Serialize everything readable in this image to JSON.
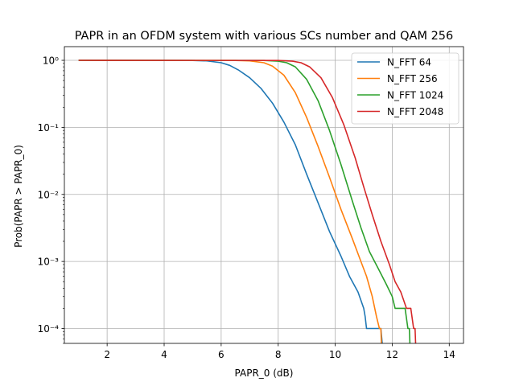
{
  "chart_data": {
    "type": "line",
    "title": "PAPR in an OFDM system with various SCs number and QAM 256",
    "xlabel": "PAPR_0 (dB)",
    "ylabel": "Prob(PAPR > PAPR_0)",
    "xlim": [
      0.5,
      14.5
    ],
    "ylim": [
      6e-05,
      1.6
    ],
    "yscale": "log",
    "xticks": [
      2,
      4,
      6,
      8,
      10,
      12,
      14
    ],
    "yticks": [
      {
        "value": 0.0001,
        "label": "10⁻⁴"
      },
      {
        "value": 0.001,
        "label": "10⁻³"
      },
      {
        "value": 0.01,
        "label": "10⁻²"
      },
      {
        "value": 0.1,
        "label": "10⁻¹"
      },
      {
        "value": 1,
        "label": "10⁰"
      }
    ],
    "grid": true,
    "legend_position": "top-right",
    "series": [
      {
        "name": "N_FFT 64",
        "color": "#1f77b4",
        "x": [
          1,
          5.0,
          5.5,
          6.0,
          6.3,
          6.6,
          7.0,
          7.4,
          7.8,
          8.2,
          8.6,
          9.0,
          9.4,
          9.8,
          10.2,
          10.5,
          10.8,
          11.0,
          11.05,
          11.1,
          11.2,
          11.35,
          11.5,
          11.6,
          11.65
        ],
        "y": [
          1.0,
          0.995,
          0.98,
          0.92,
          0.84,
          0.72,
          0.55,
          0.38,
          0.23,
          0.12,
          0.055,
          0.02,
          0.0075,
          0.0028,
          0.0012,
          0.0006,
          0.00035,
          0.0002,
          0.00015,
          0.0001,
          0.0001,
          0.0001,
          0.0001,
          0.0001,
          6e-05
        ]
      },
      {
        "name": "N_FFT 256",
        "color": "#ff7f0e",
        "x": [
          1,
          6.5,
          7.0,
          7.5,
          7.8,
          8.2,
          8.6,
          9.0,
          9.4,
          9.8,
          10.2,
          10.6,
          10.9,
          11.1,
          11.3,
          11.45,
          11.55,
          11.6,
          11.62
        ],
        "y": [
          1.0,
          0.995,
          0.98,
          0.92,
          0.82,
          0.6,
          0.33,
          0.14,
          0.052,
          0.018,
          0.006,
          0.0022,
          0.001,
          0.0006,
          0.0003,
          0.00015,
          0.0001,
          0.0001,
          6e-05
        ]
      },
      {
        "name": "N_FFT 1024",
        "color": "#2ca02c",
        "x": [
          1,
          7.5,
          8.0,
          8.3,
          8.6,
          9.0,
          9.4,
          9.8,
          10.2,
          10.6,
          10.9,
          11.2,
          11.5,
          11.8,
          12.0,
          12.1,
          12.3,
          12.45,
          12.55,
          12.6,
          12.62
        ],
        "y": [
          1.0,
          0.995,
          0.97,
          0.92,
          0.8,
          0.52,
          0.25,
          0.09,
          0.028,
          0.008,
          0.0032,
          0.0014,
          0.0008,
          0.00045,
          0.0003,
          0.0002,
          0.0002,
          0.0002,
          0.0001,
          0.0001,
          6e-05
        ]
      },
      {
        "name": "N_FFT 2048",
        "color": "#d62728",
        "x": [
          1,
          8.0,
          8.5,
          8.8,
          9.1,
          9.5,
          9.9,
          10.3,
          10.7,
          11.0,
          11.3,
          11.6,
          11.9,
          12.1,
          12.3,
          12.5,
          12.65,
          12.75,
          12.8,
          12.82
        ],
        "y": [
          1.0,
          0.995,
          0.97,
          0.92,
          0.8,
          0.55,
          0.28,
          0.11,
          0.035,
          0.013,
          0.005,
          0.002,
          0.0009,
          0.0005,
          0.00035,
          0.0002,
          0.0002,
          0.0001,
          0.0001,
          6e-05
        ]
      }
    ]
  }
}
